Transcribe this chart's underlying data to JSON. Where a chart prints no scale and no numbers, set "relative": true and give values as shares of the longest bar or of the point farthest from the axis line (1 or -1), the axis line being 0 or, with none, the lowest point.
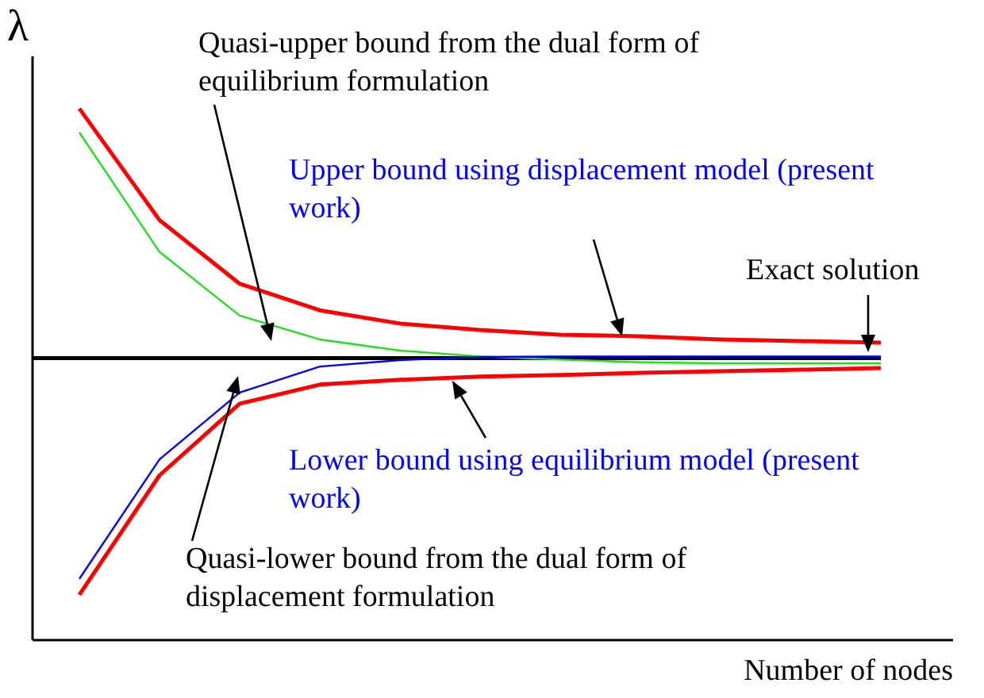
{
  "chart_data": {
    "type": "line",
    "relative": true,
    "xlabel": "Number of nodes",
    "ylabel": "λ",
    "categories": [
      null,
      null,
      null,
      null,
      null,
      null,
      null,
      null,
      null,
      null,
      null
    ],
    "series": [
      {
        "color": "#ff0000",
        "values": [
          1.0,
          0.79,
          0.67,
          0.62,
          0.595,
          0.583,
          0.574,
          0.571,
          0.565,
          0.562,
          0.559
        ]
      },
      {
        "color": "#22dd22",
        "values": [
          0.955,
          0.73,
          0.61,
          0.565,
          0.544,
          0.533,
          0.527,
          0.522,
          0.52,
          0.52,
          0.52
        ]
      },
      {
        "color": "#0000ff",
        "values": [
          0.114,
          0.339,
          0.465,
          0.514,
          0.526,
          0.532,
          0.533,
          0.533,
          0.533,
          0.533,
          0.533
        ]
      },
      {
        "color": "#ff0000",
        "values": [
          0.084,
          0.309,
          0.444,
          0.48,
          0.489,
          0.495,
          0.498,
          0.502,
          0.505,
          0.508,
          0.511
        ]
      }
    ],
    "ref_lines": [
      {
        "axis": "y",
        "value": 0.53,
        "label": "Exact solution",
        "color": "#000000"
      }
    ],
    "annotations": [
      "Quasi-upper bound from the dual form of equilibrium formulation",
      "Upper bound using displacement model (present work)",
      "Lower bound using equilibrium model (present work)",
      "Quasi-lower bound from the dual form of displacement formulation"
    ],
    "grid": false,
    "marker": "none",
    "line_style": "solid"
  }
}
